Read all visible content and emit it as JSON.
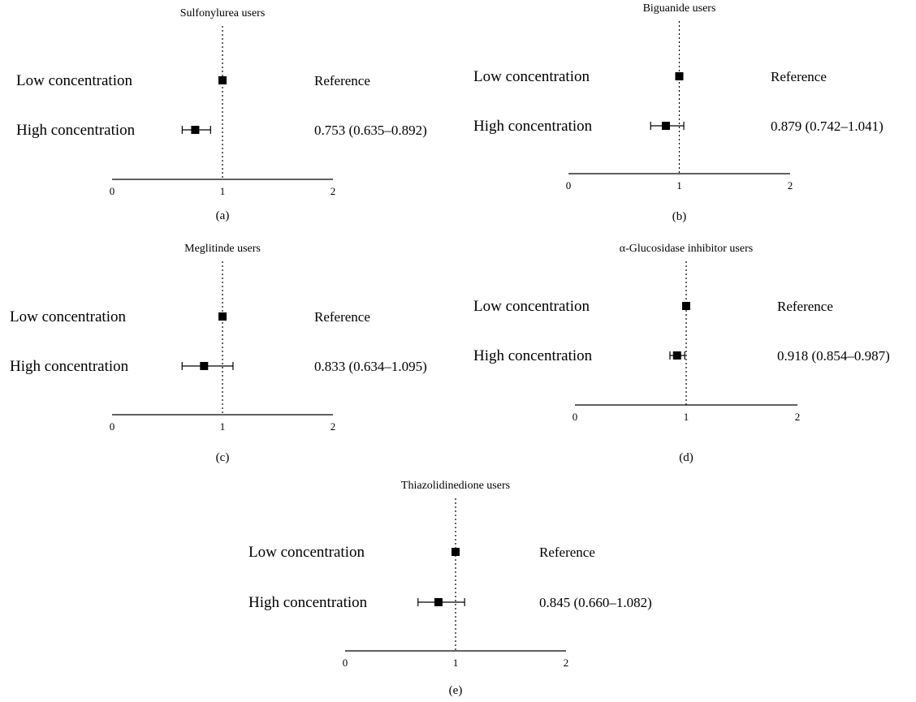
{
  "figure": {
    "panel_count": 5
  },
  "chart_data": [
    {
      "type": "scatter",
      "subtype": "forest",
      "panel_label": "(a)",
      "title": "Sulfonylurea users",
      "xlim": [
        0,
        2
      ],
      "xticks": [
        "0",
        "1",
        "2"
      ],
      "reference_line": 1,
      "reference_line_style": "dotted",
      "rows": [
        {
          "label": "Low concentration",
          "estimate": 1.0,
          "ci_low": null,
          "ci_high": null,
          "text": "Reference"
        },
        {
          "label": "High concentration",
          "estimate": 0.753,
          "ci_low": 0.635,
          "ci_high": 0.892,
          "text": "0.753 (0.635–0.892)"
        }
      ]
    },
    {
      "type": "scatter",
      "subtype": "forest",
      "panel_label": "(b)",
      "title": "Biguanide users",
      "xlim": [
        0,
        2
      ],
      "xticks": [
        "0",
        "1",
        "2"
      ],
      "reference_line": 1,
      "reference_line_style": "dotted",
      "rows": [
        {
          "label": "Low concentration",
          "estimate": 1.0,
          "ci_low": null,
          "ci_high": null,
          "text": "Reference"
        },
        {
          "label": "High concentration",
          "estimate": 0.879,
          "ci_low": 0.742,
          "ci_high": 1.041,
          "text": "0.879 (0.742–1.041)"
        }
      ]
    },
    {
      "type": "scatter",
      "subtype": "forest",
      "panel_label": "(c)",
      "title": "Meglitinde users",
      "xlim": [
        0,
        2
      ],
      "xticks": [
        "0",
        "1",
        "2"
      ],
      "reference_line": 1,
      "reference_line_style": "dotted",
      "rows": [
        {
          "label": "Low concentration",
          "estimate": 1.0,
          "ci_low": null,
          "ci_high": null,
          "text": "Reference"
        },
        {
          "label": "High concentration",
          "estimate": 0.833,
          "ci_low": 0.634,
          "ci_high": 1.095,
          "text": "0.833 (0.634–1.095)"
        }
      ]
    },
    {
      "type": "scatter",
      "subtype": "forest",
      "panel_label": "(d)",
      "title": "α-Glucosidase inhibitor users",
      "xlim": [
        0,
        2
      ],
      "xticks": [
        "0",
        "1",
        "2"
      ],
      "reference_line": 1,
      "reference_line_style": "dotted",
      "rows": [
        {
          "label": "Low concentration",
          "estimate": 1.0,
          "ci_low": null,
          "ci_high": null,
          "text": "Reference"
        },
        {
          "label": "High concentration",
          "estimate": 0.918,
          "ci_low": 0.854,
          "ci_high": 0.987,
          "text": "0.918 (0.854–0.987)"
        }
      ]
    },
    {
      "type": "scatter",
      "subtype": "forest",
      "panel_label": "(e)",
      "title": "Thiazolidinedione users",
      "xlim": [
        0,
        2
      ],
      "xticks": [
        "0",
        "1",
        "2"
      ],
      "reference_line": 1,
      "reference_line_style": "dotted",
      "rows": [
        {
          "label": "Low concentration",
          "estimate": 1.0,
          "ci_low": null,
          "ci_high": null,
          "text": "Reference"
        },
        {
          "label": "High concentration",
          "estimate": 0.845,
          "ci_low": 0.66,
          "ci_high": 1.082,
          "text": "0.845 (0.660–1.082)"
        }
      ]
    }
  ]
}
